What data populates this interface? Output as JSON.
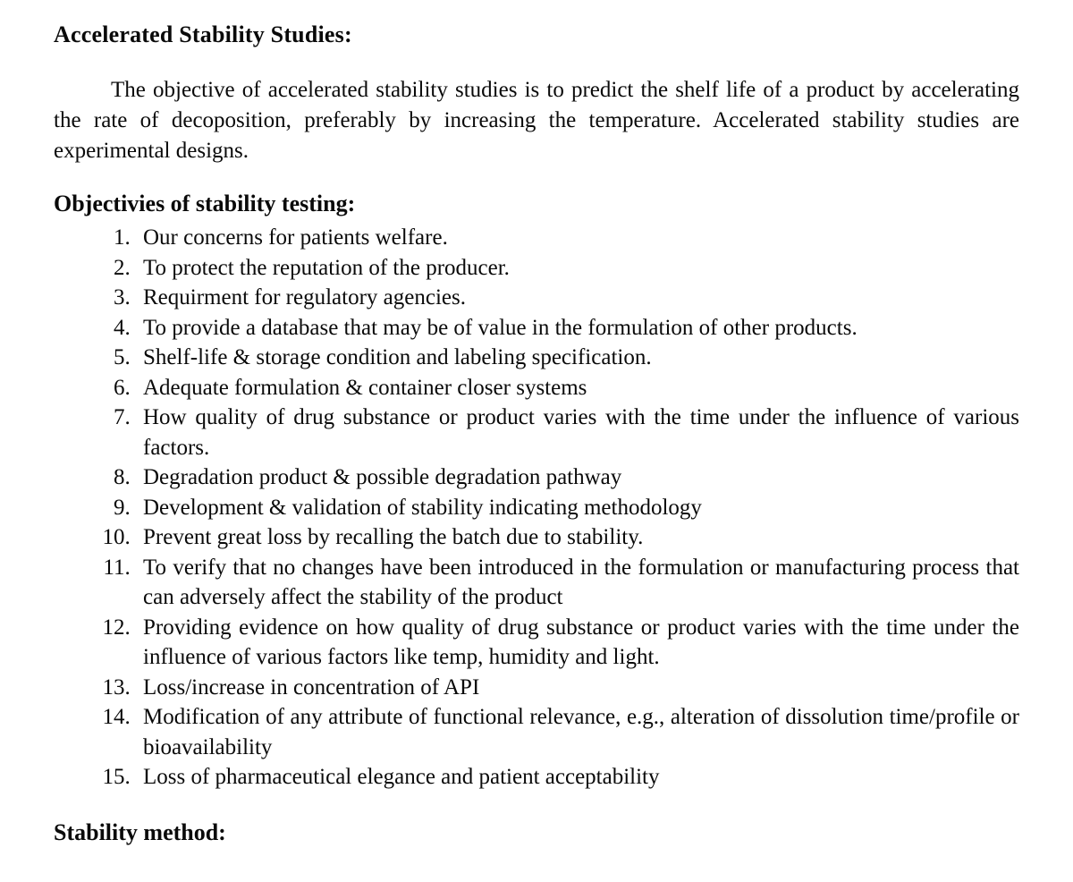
{
  "typography": {
    "font_family": "Times New Roman, Times, serif",
    "body_fontsize_pt": 18,
    "heading_fontsize_pt": 19,
    "text_color": "#0a0a0a",
    "background_color": "#ffffff",
    "justified": true,
    "line_height": 1.34
  },
  "title": "Accelerated Stability Studies:",
  "intro_paragraph": "The objective of accelerated stability studies is to predict the shelf life of a product by accelerating the rate of decoposition, preferably by increasing the temperature. Accelerated stability studies are experimental designs.",
  "objectives_heading": "Objectivies of stability testing:",
  "objectives": [
    "Our concerns for patients welfare.",
    "To protect the reputation of the producer.",
    "Requirment for regulatory agencies.",
    "To provide a database that may be of value in the formulation of other products.",
    "Shelf-life & storage condition and labeling specification.",
    "Adequate formulation & container closer systems",
    "How quality of drug substance or product varies with the time under the influence of various factors.",
    "Degradation product & possible degradation pathway",
    "Development & validation of stability indicating methodology",
    "Prevent great loss by recalling the batch due to stability.",
    "To verify that no changes have been introduced in the formulation or manufacturing process that can adversely affect the stability of the product",
    "Providing evidence on how quality of drug substance or product varies with the time under the influence of various factors like temp, humidity and light.",
    "Loss/increase in concentration of API",
    "Modification of any attribute of functional relevance, e.g., alteration of dissolution time/profile or bioavailability",
    "Loss of pharmaceutical elegance and patient acceptability"
  ],
  "stability_method_heading": "Stability method:"
}
